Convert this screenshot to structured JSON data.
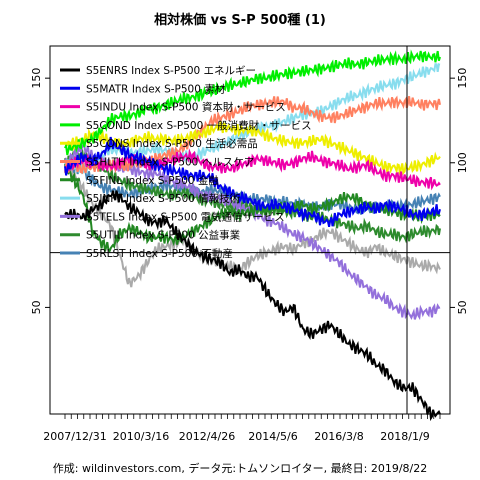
{
  "chart_data": {
    "type": "line",
    "title": "相対株価 vs S-P 500種 (1)",
    "caption": "作成: wildinvestors.com, データ元:トムソンロイター, 最終日: 2019/8/22",
    "x_labels": [
      "2007/12/31",
      "2010/3/16",
      "2012/4/26",
      "2014/5/6",
      "2016/3/8",
      "2018/1/9"
    ],
    "y_ticks": [
      50,
      100,
      150
    ],
    "ylim": [
      30,
      175
    ],
    "log_scale": true,
    "grid": false,
    "legend_position": "top-left",
    "reference_lines": {
      "horizontal": 65,
      "vertical_x_label": "2018/1/9"
    },
    "series": [
      {
        "name": "S5ENRS Index S-P500 エネルギー",
        "color": "#000000",
        "values": [
          78,
          78,
          77,
          80,
          82,
          86,
          85,
          81,
          79,
          76,
          75,
          76,
          72,
          69,
          66,
          64,
          63,
          62,
          59,
          60,
          58,
          58,
          54,
          51,
          49,
          50,
          45,
          44,
          45,
          46,
          44,
          42,
          41,
          40,
          38,
          37,
          35,
          34,
          34,
          32,
          30,
          30
        ]
      },
      {
        "name": "S5MATR Index S-P500 素材",
        "color": "#0000ee",
        "values": [
          96,
          100,
          103,
          101,
          104,
          110,
          107,
          104,
          102,
          101,
          99,
          97,
          96,
          95,
          94,
          94,
          93,
          89,
          87,
          85,
          84,
          82,
          81,
          82,
          81,
          80,
          78,
          78,
          76,
          75,
          78,
          79,
          80,
          81,
          80,
          82,
          81,
          80,
          78,
          78,
          79,
          80
        ]
      },
      {
        "name": "S5INDU Index S-P500 資本財・サービス",
        "color": "#ee00aa",
        "values": [
          97,
          100,
          101,
          100,
          99,
          98,
          100,
          102,
          101,
          99,
          99,
          100,
          102,
          103,
          103,
          100,
          98,
          98,
          97,
          99,
          100,
          102,
          101,
          100,
          99,
          100,
          102,
          103,
          101,
          100,
          99,
          97,
          98,
          99,
          96,
          94,
          94,
          93,
          92,
          91,
          91,
          90
        ]
      },
      {
        "name": "S5COND Index S-P500 一般消費財・サービス",
        "color": "#00ee00",
        "values": [
          106,
          108,
          110,
          112,
          117,
          123,
          125,
          125,
          127,
          130,
          130,
          132,
          134,
          136,
          137,
          139,
          141,
          143,
          145,
          146,
          148,
          150,
          150,
          152,
          153,
          154,
          155,
          156,
          157,
          158,
          160,
          161,
          160,
          162,
          163,
          164,
          165,
          164,
          166,
          167,
          166,
          166
        ]
      },
      {
        "name": "S5CONS Index S-P500 生活必需品",
        "color": "#eeee00",
        "values": [
          109,
          110,
          112,
          114,
          113,
          111,
          109,
          110,
          112,
          113,
          112,
          112,
          111,
          112,
          114,
          115,
          117,
          119,
          118,
          117,
          117,
          116,
          114,
          112,
          111,
          110,
          110,
          111,
          112,
          110,
          108,
          106,
          104,
          102,
          100,
          98,
          98,
          97,
          98,
          99,
          101,
          103
        ]
      },
      {
        "name": "S5HLTH Index S-P500 ヘルスケア",
        "color": "#ff8060",
        "values": [
          98,
          98,
          97,
          98,
          99,
          99,
          98,
          99,
          100,
          101,
          102,
          104,
          105,
          108,
          112,
          117,
          122,
          124,
          126,
          128,
          131,
          132,
          133,
          134,
          134,
          130,
          130,
          127,
          125,
          124,
          125,
          127,
          129,
          131,
          133,
          133,
          134,
          133,
          134,
          132,
          133,
          132
        ]
      },
      {
        "name": "S5FINL Index S-P500 金融",
        "color": "#228822",
        "values": [
          98,
          92,
          85,
          72,
          68,
          66,
          71,
          73,
          72,
          70,
          70,
          70,
          69,
          70,
          72,
          74,
          76,
          78,
          79,
          78,
          79,
          80,
          80,
          80,
          81,
          81,
          82,
          80,
          81,
          82,
          84,
          85,
          84,
          82,
          80,
          80,
          79,
          78,
          78,
          77,
          78,
          78
        ]
      },
      {
        "name": "S5INFT Index S-P500 情報技術",
        "color": "#88ddee",
        "values": [
          100,
          98,
          97,
          99,
          103,
          107,
          106,
          105,
          105,
          106,
          107,
          106,
          104,
          103,
          103,
          105,
          107,
          109,
          111,
          113,
          116,
          118,
          119,
          120,
          122,
          124,
          126,
          127,
          128,
          131,
          134,
          137,
          138,
          141,
          143,
          145,
          146,
          149,
          151,
          154,
          156,
          160
        ]
      },
      {
        "name": "S5TELS Index S-P500 電気通信サービス",
        "color": "#9370db",
        "values": [
          100,
          104,
          108,
          103,
          101,
          99,
          98,
          97,
          96,
          95,
          95,
          93,
          91,
          90,
          88,
          86,
          85,
          84,
          83,
          81,
          80,
          78,
          76,
          75,
          73,
          71,
          70,
          68,
          66,
          64,
          62,
          59,
          57,
          55,
          53,
          52,
          50,
          49,
          48,
          49,
          49,
          50
        ]
      },
      {
        "name": "S5UTIL Index S-P500 公益事業",
        "color": "#2e8b2e",
        "values": [
          100,
          103,
          104,
          102,
          98,
          94,
          92,
          90,
          89,
          88,
          87,
          86,
          86,
          87,
          85,
          84,
          83,
          82,
          81,
          82,
          81,
          80,
          79,
          80,
          79,
          79,
          78,
          77,
          77,
          76,
          75,
          74,
          73,
          74,
          72,
          71,
          71,
          70,
          71,
          72,
          72,
          73
        ]
      },
      {
        "name": "S5RLST Index S-P500 不動産",
        "color": "#4682b4",
        "values": [
          100,
          98,
          96,
          92,
          89,
          88,
          87,
          86,
          87,
          88,
          89,
          90,
          89,
          88,
          87,
          87,
          88,
          87,
          86,
          85,
          84,
          84,
          84,
          83,
          83,
          82,
          82,
          81,
          81,
          82,
          82,
          81,
          80,
          80,
          81,
          81,
          82,
          81,
          82,
          83,
          84,
          85
        ]
      },
      {
        "name": "",
        "color": "#aaaaaa",
        "values": [
          100,
          95,
          88,
          82,
          78,
          74,
          64,
          56,
          58,
          62,
          66,
          67,
          68,
          69,
          66,
          64,
          63,
          62,
          61,
          60,
          62,
          64,
          65,
          66,
          67,
          66,
          68,
          69,
          71,
          72,
          70,
          68,
          66,
          65,
          67,
          65,
          64,
          63,
          62,
          61,
          61,
          60
        ]
      }
    ]
  }
}
